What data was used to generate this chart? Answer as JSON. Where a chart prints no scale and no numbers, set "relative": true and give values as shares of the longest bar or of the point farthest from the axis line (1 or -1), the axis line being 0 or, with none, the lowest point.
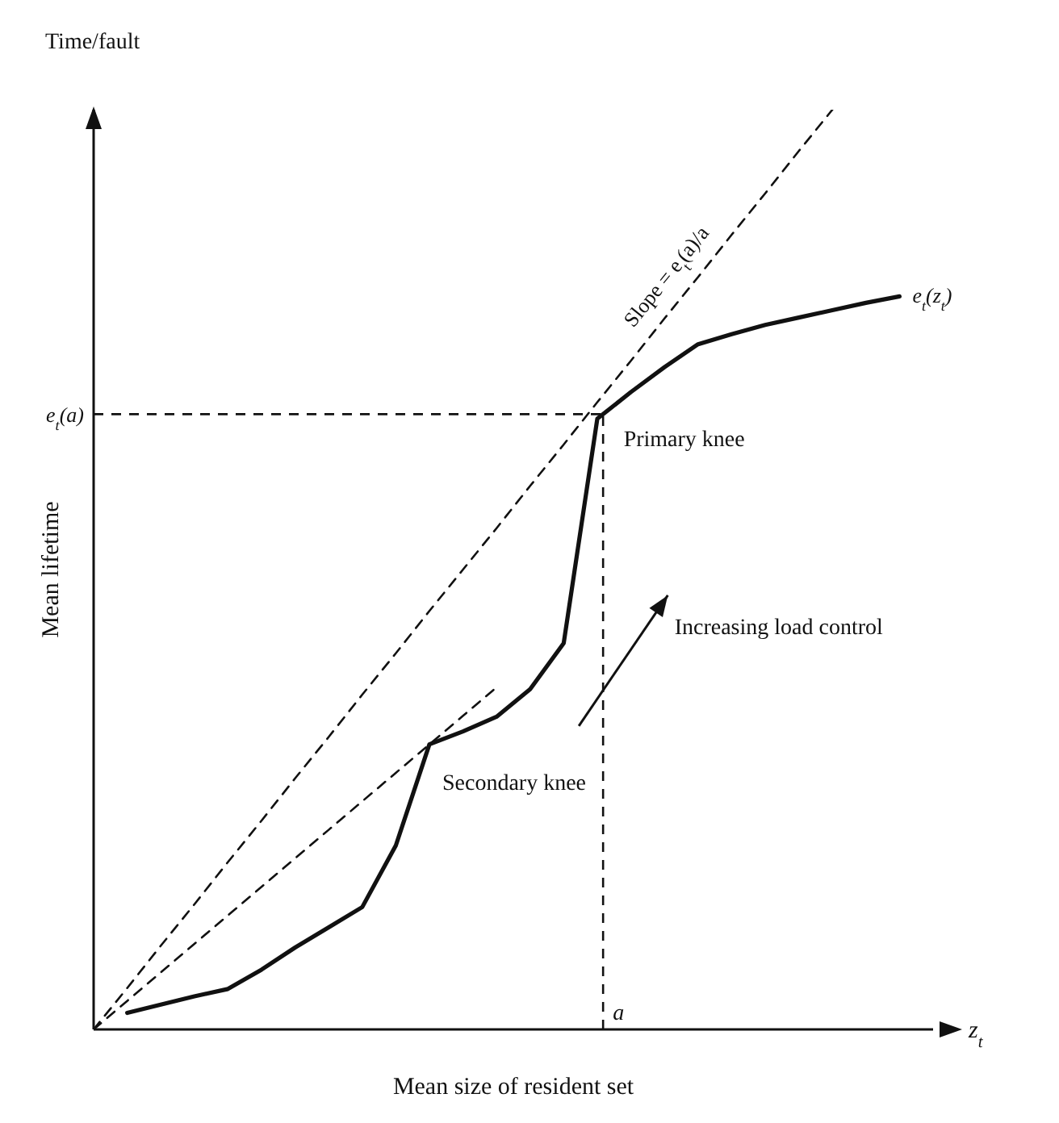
{
  "chart_data": {
    "type": "line",
    "relative": true,
    "xlabel": "Mean size of resident set",
    "ylabel": "Mean lifetime",
    "categories": [
      null,
      null,
      null,
      null,
      null,
      null,
      null,
      null,
      null,
      null,
      null,
      null,
      null,
      null,
      null,
      null,
      null,
      null,
      null,
      null,
      null,
      null,
      null,
      null,
      null
    ],
    "annotations": [
      "Time/fault",
      "z$_{t}$",
      "Increasing load control",
      "Primary knee",
      "Secondary knee"
    ],
    "series": [
      {
        "name": "e$_{t}$(z$_{t}$)",
        "color": "#111111",
        "line_style": "solid",
        "values": [
          null,
          0.018,
          0.027,
          0.036,
          0.044,
          0.065,
          0.089,
          0.111,
          0.133,
          0.2,
          0.31,
          0.324,
          0.34,
          0.37,
          0.42,
          0.664,
          0.693,
          0.72,
          0.745,
          0.756,
          0.766,
          0.774,
          0.782,
          0.79,
          0.797
        ]
      },
      {
        "name": "Slope = e$_{t}$(a)/a",
        "color": "#111111",
        "line_style": "dashed",
        "values": [
          0,
          0.045,
          0.091,
          0.136,
          0.182,
          0.227,
          0.273,
          0.318,
          0.364,
          0.409,
          0.455,
          0.5,
          0.545,
          0.591,
          0.636,
          0.682,
          0.727,
          0.773,
          0.818,
          0.864,
          0.909,
          0.955,
          1.0,
          null,
          null
        ]
      },
      {
        "color": "#111111",
        "line_style": "dashed",
        "values": [
          0,
          0.031,
          0.062,
          0.093,
          0.124,
          0.155,
          0.186,
          0.217,
          0.248,
          0.279,
          0.31,
          0.341,
          0.372,
          null,
          null,
          null,
          null,
          null,
          null,
          null,
          null,
          null,
          null,
          null,
          null
        ]
      }
    ],
    "ref_lines": [
      {
        "axis": "y",
        "value": 0.669,
        "label": "e$_{t}$(a)",
        "line_style": "dashed",
        "color": "#111111"
      },
      {
        "axis": "x",
        "label": "a",
        "line_style": "dashed",
        "color": "#111111"
      }
    ],
    "legend": false,
    "grid": false,
    "marker": "none"
  }
}
